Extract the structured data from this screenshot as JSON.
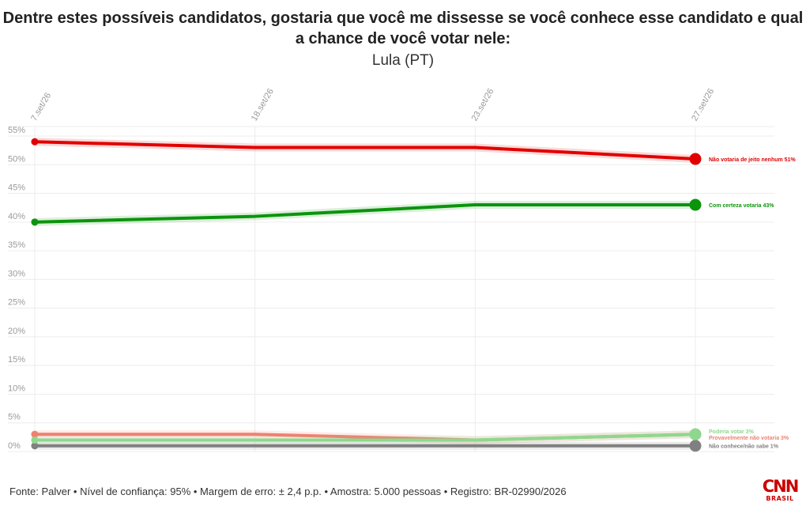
{
  "title": "Dentre estes possíveis candidatos, gostaria que você me dissesse se você conhece esse candidato e qual a chance de você votar nele:",
  "subtitle": "Lula (PT)",
  "footer": "Fonte: Palver • Nível de confiança: 95% • Margem de erro: ± 2,4 p.p. • Amostra: 5.000 pessoas • Registro: BR-02990/2026",
  "logo": {
    "text": "CNN",
    "subtext": "BRASIL"
  },
  "chart_data": {
    "type": "line",
    "x": [
      "7.set/26",
      "18.set/26",
      "23.set/26",
      "27.set/26"
    ],
    "ylim": [
      0,
      55
    ],
    "yticks": [
      0,
      5,
      10,
      15,
      20,
      25,
      30,
      35,
      40,
      45,
      50,
      55
    ],
    "ytick_labels": [
      "0%",
      "5%",
      "10%",
      "15%",
      "20%",
      "25%",
      "30%",
      "35%",
      "40%",
      "45%",
      "50%",
      "55%"
    ],
    "grid": true,
    "series": [
      {
        "name": "Não votaria de jeito nenhum",
        "end_label": "Não votaria de jeito nenhum 51%",
        "values": [
          54,
          53,
          53,
          51
        ],
        "color": "#e10000"
      },
      {
        "name": "Com certeza votaria",
        "end_label": "Com certeza votaria 43%",
        "values": [
          40,
          41,
          43,
          43
        ],
        "color": "#0c940c"
      },
      {
        "name": "Poderia votar",
        "end_label": "Poderia votar 3%",
        "values": [
          2,
          2,
          2,
          3
        ],
        "color": "#8ed88e"
      },
      {
        "name": "Provavelmente não votaria",
        "end_label": "Provavelmente não votaria 3%",
        "values": [
          3,
          3,
          2,
          3
        ],
        "color": "#f08070"
      },
      {
        "name": "Não conhece/não sabe",
        "end_label": "Não conhece/não sabe 1%",
        "values": [
          1,
          1,
          1,
          1
        ],
        "color": "#808080"
      }
    ]
  }
}
